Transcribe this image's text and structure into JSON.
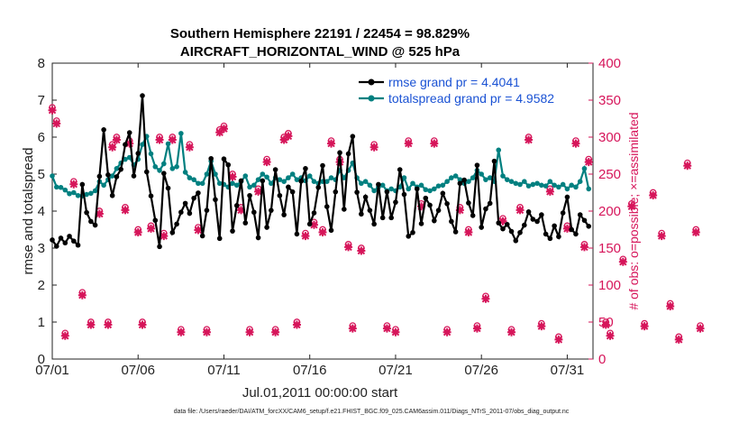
{
  "chart_data": {
    "type": "line",
    "title": "Southern Hemisphere 22191 / 22454 = 98.829%",
    "subtitle": "AIRCRAFT_HORIZONTAL_WIND @ 525 hPa",
    "xlabel": "Jul.01,2011 00:00:00 start",
    "ylabel": "rmse and totalspread",
    "ylabel_right": "# of obs: o=possible; ×=assimilated",
    "footnote": "data file: /Users/raeder/DAI/ATM_forcXX/CAM6_setup/f.e21.FHIST_BGC.f09_025.CAM6assim.011/Diags_NTrS_2011-07/obs_diag_output.nc",
    "xlim": [
      0,
      31.5
    ],
    "ylim": [
      0,
      8
    ],
    "ylim_right": [
      0,
      400
    ],
    "x_tick_labels": [
      "07/01",
      "07/06",
      "07/11",
      "07/16",
      "07/21",
      "07/26",
      "07/31"
    ],
    "x_tick_values": [
      0,
      5,
      10,
      15,
      20,
      25,
      30
    ],
    "y_ticks": [
      "0",
      "1",
      "2",
      "3",
      "4",
      "5",
      "6",
      "7",
      "8"
    ],
    "y_ticks_right": [
      "0",
      "50",
      "100",
      "150",
      "200",
      "250",
      "300",
      "350",
      "400"
    ],
    "legend_location": "top-right",
    "series": [
      {
        "name": "rmse grand pr = 4.4041",
        "color": "#000000",
        "marker": "circle",
        "values": [
          3.22,
          3.05,
          3.27,
          3.14,
          3.32,
          3.19,
          3.08,
          4.72,
          3.96,
          3.72,
          3.62,
          4.94,
          6.2,
          4.98,
          4.42,
          4.93,
          5.13,
          5.8,
          6.12,
          4.95,
          5.56,
          7.12,
          5.06,
          4.41,
          3.75,
          3.04,
          5.02,
          4.62,
          3.42,
          3.65,
          3.97,
          4.21,
          3.94,
          4.35,
          4.49,
          3.33,
          4.02,
          5.42,
          4.31,
          3.26,
          5.41,
          5.25,
          3.46,
          4.15,
          4.82,
          3.68,
          4.42,
          3.97,
          3.28,
          4.82,
          3.56,
          4.02,
          5.12,
          4.42,
          3.9,
          4.65,
          4.52,
          3.38,
          4.81,
          5.15,
          3.65,
          3.95,
          4.64,
          5.23,
          4.12,
          3.48,
          4.52,
          5.58,
          4.05,
          5.55,
          6.02,
          4.51,
          3.92,
          4.38,
          4.02,
          3.65,
          4.72,
          3.82,
          4.52,
          3.82,
          4.24,
          5.12,
          4.45,
          3.32,
          3.42,
          4.6,
          3.66,
          4.35,
          4.16,
          3.74,
          4.02,
          4.48,
          4.2,
          3.72,
          3.44,
          4.75,
          4.84,
          4.22,
          3.88,
          5.24,
          3.56,
          4.06,
          4.21,
          5.35,
          3.68,
          3.52,
          3.64,
          3.45,
          3.2,
          3.42,
          3.62,
          3.98,
          3.78,
          3.72,
          3.9,
          3.38,
          3.26,
          3.6,
          3.31,
          3.95,
          4.38,
          3.5,
          3.38,
          3.9,
          3.75,
          3.59
        ]
      },
      {
        "name": "totalspread grand pr = 4.9582",
        "color": "#008080",
        "marker": "circle",
        "values": [
          4.95,
          4.65,
          4.64,
          4.57,
          4.47,
          4.5,
          4.42,
          4.41,
          4.45,
          4.48,
          4.55,
          4.8,
          4.7,
          4.85,
          4.95,
          5.15,
          5.3,
          5.4,
          5.45,
          5.25,
          5.4,
          5.8,
          6.02,
          5.55,
          5.2,
          5.1,
          5.28,
          5.82,
          5.15,
          5.2,
          6.1,
          5.05,
          4.9,
          4.85,
          4.75,
          4.75,
          5.0,
          5.35,
          5.0,
          4.75,
          4.72,
          4.65,
          4.75,
          4.7,
          4.8,
          4.95,
          4.65,
          4.7,
          4.85,
          5.0,
          4.92,
          4.75,
          4.9,
          4.85,
          4.8,
          4.9,
          5.0,
          4.85,
          4.9,
          4.82,
          4.95,
          4.8,
          4.75,
          4.8,
          4.8,
          4.9,
          4.85,
          5.1,
          4.9,
          5.1,
          5.3,
          4.9,
          4.75,
          4.8,
          4.7,
          4.55,
          4.65,
          4.7,
          4.55,
          4.6,
          4.55,
          4.65,
          4.9,
          4.6,
          4.75,
          4.65,
          4.7,
          4.58,
          4.55,
          4.6,
          4.68,
          4.7,
          4.8,
          4.9,
          4.95,
          4.85,
          4.75,
          4.8,
          4.9,
          5.1,
          5.0,
          4.85,
          4.9,
          4.8,
          5.65,
          4.95,
          4.85,
          4.8,
          4.75,
          4.72,
          4.8,
          4.68,
          4.72,
          4.75,
          4.7,
          4.68,
          4.8,
          4.7,
          4.65,
          4.72,
          4.6,
          4.7,
          4.65,
          4.8,
          5.15,
          4.6
        ]
      },
      {
        "name": "possible",
        "color": "#d6155a",
        "marker": "o",
        "axis": "right",
        "values": [
          340,
          322,
          0,
          35,
          0,
          240,
          0,
          90,
          0,
          50,
          0,
          200,
          0,
          50,
          290,
          300,
          0,
          205,
          295,
          0,
          175,
          50,
          0,
          180,
          0,
          300,
          170,
          0,
          300,
          0,
          40,
          0,
          290,
          0,
          178,
          0,
          40,
          0,
          0,
          310,
          315,
          0,
          250,
          0,
          205,
          0,
          40,
          0,
          230,
          0,
          270,
          0,
          40,
          0,
          300,
          305,
          0,
          50,
          0,
          170,
          0,
          185,
          0,
          175,
          0,
          295,
          0,
          270,
          0,
          155,
          45,
          0,
          150,
          0,
          0,
          290,
          0,
          0,
          45,
          0,
          40,
          0,
          0,
          295,
          0,
          0,
          210,
          0,
          0,
          295,
          0,
          0,
          40,
          0,
          0,
          205,
          0,
          175,
          0,
          45,
          0,
          85,
          0,
          0,
          0,
          190,
          0,
          40,
          0,
          205,
          0,
          300,
          0,
          0,
          48,
          0,
          230,
          0,
          30,
          0,
          180,
          0,
          295,
          0,
          155,
          270,
          0,
          0,
          0,
          50,
          35,
          0,
          0,
          135,
          0,
          210,
          0,
          0,
          48,
          0,
          225,
          0,
          170,
          0,
          75,
          0,
          30,
          0,
          265,
          0,
          175,
          45,
          0
        ]
      }
    ]
  }
}
